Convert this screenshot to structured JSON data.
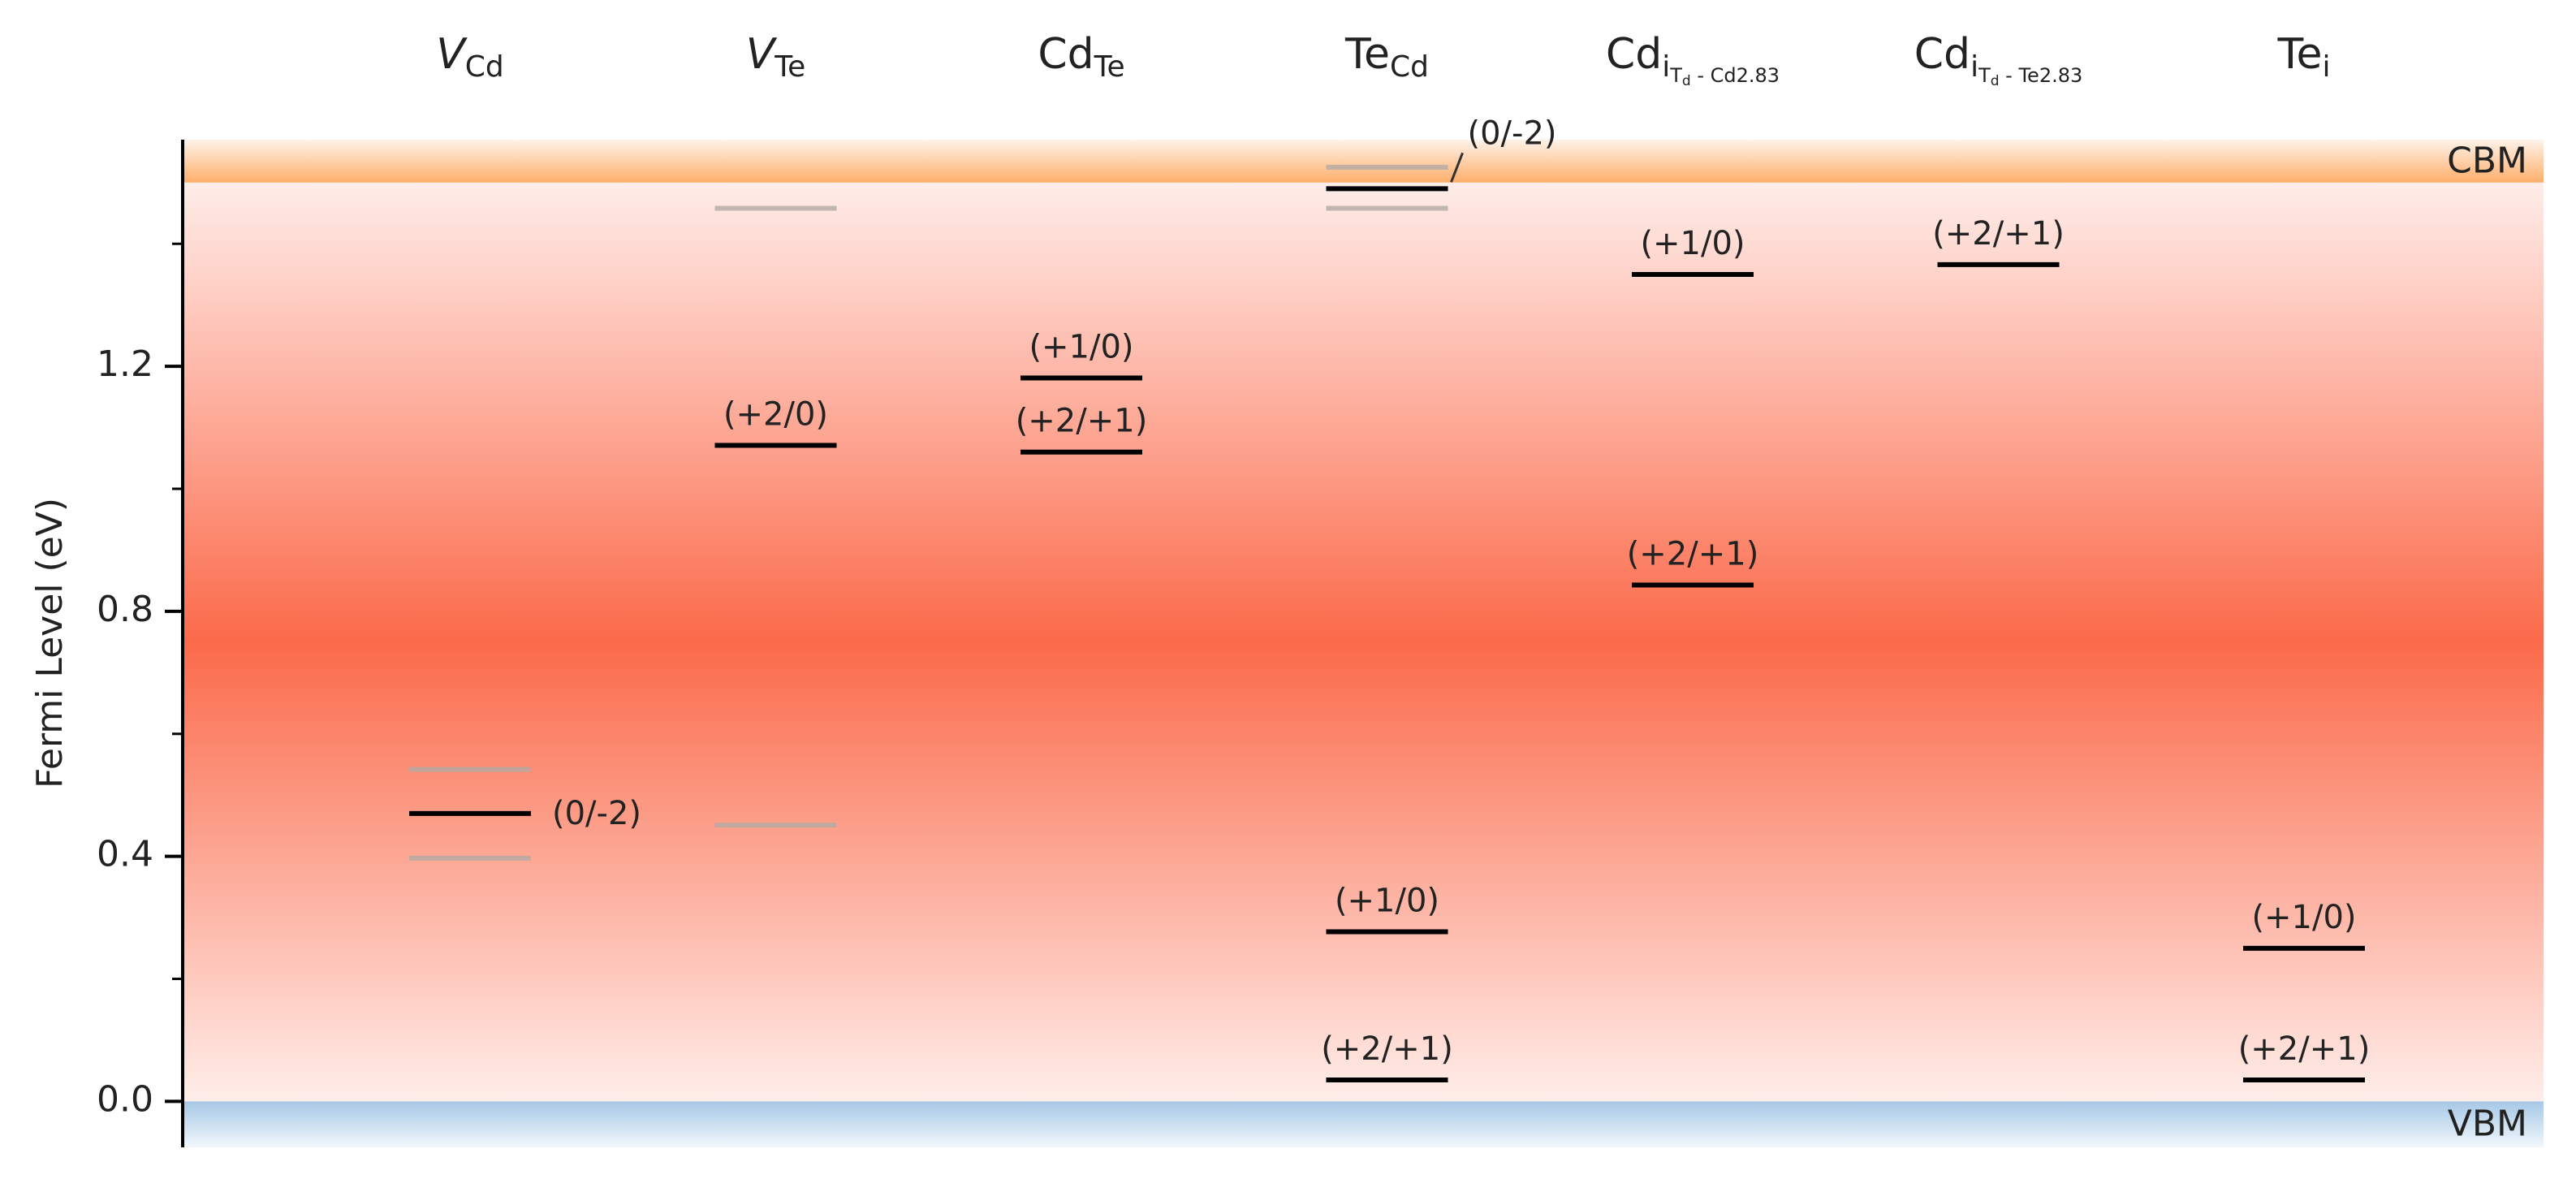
{
  "chart_data": {
    "type": "levels",
    "y_label": "Fermi Level (eV)",
    "ylim": [
      -0.075,
      1.57
    ],
    "yticks": [
      {
        "value": 0,
        "label": "0.0"
      },
      {
        "value": 0.4,
        "label": "0.4"
      },
      {
        "value": 0.8,
        "label": "0.8"
      },
      {
        "value": 1.2,
        "label": "1.2"
      }
    ],
    "minor_yticks": [
      0.2,
      0.6,
      1,
      1.4
    ],
    "band_edges": [
      {
        "label": "CBM",
        "value": 1.5,
        "color": "#fdae6b"
      },
      {
        "label": "VBM",
        "value": 0,
        "color": "#a6c8e6"
      }
    ],
    "gap_color": "#fb6a4a",
    "defects": [
      {
        "label": [
          {
            "text": "V",
            "level": 0,
            "italic": true
          },
          {
            "text": "Cd",
            "level": 1
          }
        ],
        "levels": [
          {
            "value": 0.542,
            "color": "#b3aaa5"
          },
          {
            "value": 0.47,
            "color": "#000000",
            "label": "(0/-2)"
          },
          {
            "value": 0.397,
            "color": "#b3aaa5"
          }
        ]
      },
      {
        "label": [
          {
            "text": "V",
            "level": 0,
            "italic": true
          },
          {
            "text": "Te",
            "level": 1
          }
        ],
        "levels": [
          {
            "value": 1.458,
            "color": "#b3aaa5"
          },
          {
            "value": 1.071,
            "color": "#000000",
            "label": "(+2/0)"
          },
          {
            "value": 0.451,
            "color": "#b3aaa5"
          }
        ]
      },
      {
        "label": [
          {
            "text": "Cd",
            "level": 0
          },
          {
            "text": "Te",
            "level": 1
          }
        ],
        "levels": [
          {
            "value": 1.181,
            "color": "#000000",
            "label": "(+1/0)"
          },
          {
            "value": 1.06,
            "color": "#000000",
            "label": "(+2/+1)"
          }
        ]
      },
      {
        "label": [
          {
            "text": "Te",
            "level": 0
          },
          {
            "text": "Cd",
            "level": 1
          }
        ],
        "levels": [
          {
            "value": 1.525,
            "color": "#b3aaa5"
          },
          {
            "value": 1.49,
            "color": "#000000",
            "label": "(0/-2)"
          },
          {
            "value": 1.458,
            "color": "#b3aaa5"
          },
          {
            "value": 0.277,
            "color": "#000000",
            "label": "(+1/0)"
          },
          {
            "value": 0.035,
            "color": "#000000",
            "label": "(+2/+1)"
          }
        ]
      },
      {
        "label": [
          {
            "text": "Cd",
            "level": 0
          },
          {
            "text": "i",
            "level": 1
          },
          {
            "text": "T",
            "level": 2
          },
          {
            "text": "d",
            "level": 3
          },
          {
            "text": " - Cd2.83",
            "level": 2
          }
        ],
        "levels": [
          {
            "value": 1.35,
            "color": "#000000",
            "label": "(+1/0)"
          },
          {
            "value": 0.843,
            "color": "#000000",
            "label": "(+2/+1)"
          }
        ]
      },
      {
        "label": [
          {
            "text": "Cd",
            "level": 0
          },
          {
            "text": "i",
            "level": 1
          },
          {
            "text": "T",
            "level": 2
          },
          {
            "text": "d",
            "level": 3
          },
          {
            "text": " - Te2.83",
            "level": 2
          }
        ],
        "levels": [
          {
            "value": 1.366,
            "color": "#000000",
            "label": "(+2/+1)"
          }
        ]
      },
      {
        "label": [
          {
            "text": "Te",
            "level": 0
          },
          {
            "text": "i",
            "level": 1
          }
        ],
        "levels": [
          {
            "value": 0.25,
            "color": "#000000",
            "label": "(+1/0)"
          },
          {
            "value": 0.035,
            "color": "#000000",
            "label": "(+2/+1)"
          }
        ]
      }
    ]
  }
}
